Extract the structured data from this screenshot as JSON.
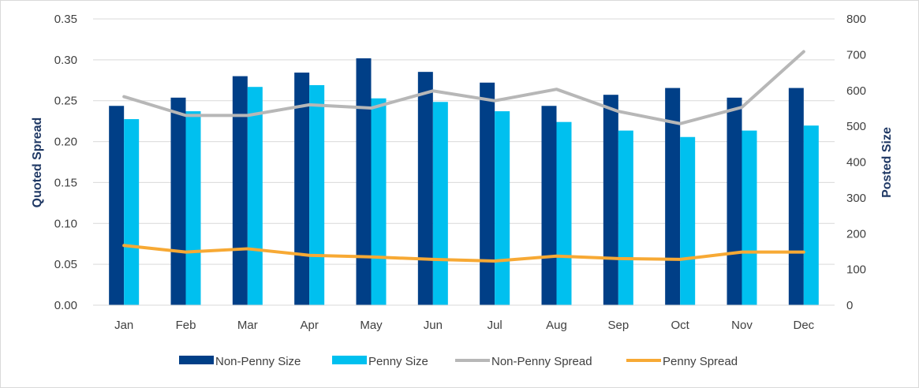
{
  "chart_data": {
    "type": "bar",
    "categories": [
      "Jan",
      "Feb",
      "Mar",
      "Apr",
      "May",
      "Jun",
      "Jul",
      "Aug",
      "Sep",
      "Oct",
      "Nov",
      "Dec"
    ],
    "series": [
      {
        "name": "Non-Penny Size",
        "kind": "bar",
        "axis": "right",
        "color": "#003f87",
        "values": [
          557,
          580,
          640,
          650,
          690,
          652,
          622,
          557,
          588,
          607,
          580,
          607
        ]
      },
      {
        "name": "Penny Size",
        "kind": "bar",
        "axis": "right",
        "color": "#00c0ef",
        "values": [
          520,
          542,
          610,
          615,
          578,
          568,
          542,
          512,
          488,
          470,
          488,
          502
        ]
      },
      {
        "name": "Non-Penny Spread",
        "kind": "line",
        "axis": "left",
        "color": "#b7b7b7",
        "values": [
          0.255,
          0.232,
          0.232,
          0.245,
          0.241,
          0.262,
          0.25,
          0.264,
          0.237,
          0.222,
          0.242,
          0.31
        ]
      },
      {
        "name": "Penny Spread",
        "kind": "line",
        "axis": "left",
        "color": "#f7a934",
        "values": [
          0.073,
          0.065,
          0.069,
          0.061,
          0.059,
          0.056,
          0.054,
          0.06,
          0.057,
          0.056,
          0.065,
          0.065
        ]
      }
    ],
    "ylabel": "Quoted Spread",
    "y2label": "Posted Size",
    "ylim": [
      0,
      0.35
    ],
    "y2lim": [
      0,
      800
    ],
    "yticks": [
      "0.00",
      "0.05",
      "0.10",
      "0.15",
      "0.20",
      "0.25",
      "0.30",
      "0.35"
    ],
    "y2ticks": [
      "0",
      "100",
      "200",
      "300",
      "400",
      "500",
      "600",
      "700",
      "800"
    ],
    "grid": true,
    "legend": "bottom"
  }
}
